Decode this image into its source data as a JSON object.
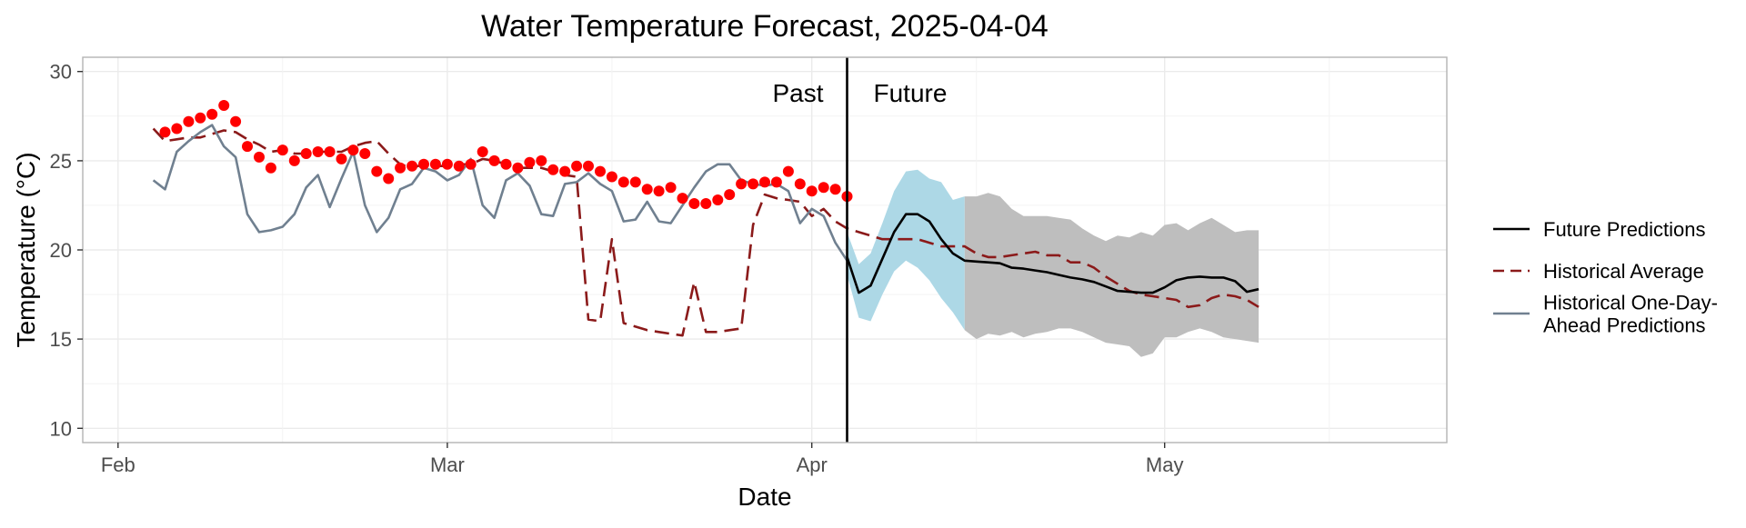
{
  "chart_data": {
    "type": "line",
    "title": "Water Temperature Forecast, 2025-04-04",
    "xlabel": "Date",
    "ylabel": "Temperature (°C)",
    "xlim": [
      "2025-01-29",
      "2025-05-25"
    ],
    "ylim": [
      9.2,
      30.8
    ],
    "yticks": [
      10,
      15,
      20,
      25,
      30
    ],
    "xticks": [
      {
        "date": "2025-02-01",
        "label": "Feb"
      },
      {
        "date": "2025-03-01",
        "label": "Mar"
      },
      {
        "date": "2025-04-01",
        "label": "Apr"
      },
      {
        "date": "2025-05-01",
        "label": "May"
      }
    ],
    "x_minor_ticks": [
      "2025-02-15",
      "2025-03-15",
      "2025-04-15",
      "2025-05-15"
    ],
    "grid": true,
    "legend_position": "right",
    "cutoff_date": "2025-04-04",
    "annotations": {
      "past": "Past",
      "future": "Future"
    },
    "legend": [
      {
        "key": "future",
        "label": [
          "Future Predictions"
        ],
        "style": "solid",
        "color": "#000000"
      },
      {
        "key": "historical_average",
        "label": [
          "Historical Average"
        ],
        "style": "dashed",
        "color": "#8b1a1a"
      },
      {
        "key": "one_day_ahead",
        "label": [
          "Historical One-Day-",
          "Ahead Predictions"
        ],
        "style": "solid",
        "color": "#708090"
      }
    ],
    "colors": {
      "observed": "#ff0000",
      "future_line": "#000000",
      "historical_average": "#8b1a1a",
      "one_day_ahead": "#708090",
      "ribbon_near": "#add8e6",
      "ribbon_far": "#bebebe",
      "cutoff_line": "#000000"
    },
    "series": [
      {
        "key": "observed",
        "type": "scatter",
        "x": [
          "2025-02-05",
          "2025-02-06",
          "2025-02-07",
          "2025-02-08",
          "2025-02-09",
          "2025-02-10",
          "2025-02-11",
          "2025-02-12",
          "2025-02-13",
          "2025-02-14",
          "2025-02-15",
          "2025-02-16",
          "2025-02-17",
          "2025-02-18",
          "2025-02-19",
          "2025-02-20",
          "2025-02-21",
          "2025-02-22",
          "2025-02-23",
          "2025-02-24",
          "2025-02-25",
          "2025-02-26",
          "2025-02-27",
          "2025-02-28",
          "2025-03-01",
          "2025-03-02",
          "2025-03-03",
          "2025-03-04",
          "2025-03-05",
          "2025-03-06",
          "2025-03-07",
          "2025-03-08",
          "2025-03-09",
          "2025-03-10",
          "2025-03-11",
          "2025-03-12",
          "2025-03-13",
          "2025-03-14",
          "2025-03-15",
          "2025-03-16",
          "2025-03-17",
          "2025-03-18",
          "2025-03-19",
          "2025-03-20",
          "2025-03-21",
          "2025-03-22",
          "2025-03-23",
          "2025-03-24",
          "2025-03-25",
          "2025-03-26",
          "2025-03-27",
          "2025-03-28",
          "2025-03-29",
          "2025-03-30",
          "2025-03-31",
          "2025-04-01",
          "2025-04-02",
          "2025-04-03",
          "2025-04-04"
        ],
        "y": [
          26.6,
          26.8,
          27.2,
          27.4,
          27.6,
          28.1,
          27.2,
          25.8,
          25.2,
          24.6,
          25.6,
          25.0,
          25.4,
          25.5,
          25.5,
          25.1,
          25.6,
          25.4,
          24.4,
          24.0,
          24.6,
          24.7,
          24.8,
          24.8,
          24.8,
          24.7,
          24.8,
          25.5,
          25.0,
          24.8,
          24.6,
          24.9,
          25.0,
          24.5,
          24.4,
          24.7,
          24.7,
          24.4,
          24.1,
          23.8,
          23.8,
          23.4,
          23.3,
          23.5,
          22.9,
          22.6,
          22.6,
          22.8,
          23.1,
          23.7,
          23.7,
          23.8,
          23.8,
          24.4,
          23.7,
          23.3,
          23.5,
          23.4,
          23.0
        ]
      },
      {
        "key": "future",
        "name": "Future Predictions",
        "type": "line",
        "x": [
          "2025-04-04",
          "2025-04-05",
          "2025-04-06",
          "2025-04-07",
          "2025-04-08",
          "2025-04-09",
          "2025-04-10",
          "2025-04-11",
          "2025-04-12",
          "2025-04-13",
          "2025-04-14",
          "2025-04-15",
          "2025-04-16",
          "2025-04-17",
          "2025-04-18",
          "2025-04-19",
          "2025-04-20",
          "2025-04-21",
          "2025-04-22",
          "2025-04-23",
          "2025-04-24",
          "2025-04-25",
          "2025-04-26",
          "2025-04-27",
          "2025-04-28",
          "2025-04-29",
          "2025-04-30",
          "2025-05-01",
          "2025-05-02",
          "2025-05-03",
          "2025-05-04",
          "2025-05-05",
          "2025-05-06",
          "2025-05-07",
          "2025-05-08",
          "2025-05-09"
        ],
        "y": [
          19.6,
          17.6,
          18.0,
          19.5,
          21.0,
          22.0,
          22.0,
          21.6,
          20.6,
          19.8,
          19.4,
          19.35,
          19.3,
          19.25,
          19.0,
          18.95,
          18.85,
          18.75,
          18.6,
          18.45,
          18.35,
          18.2,
          17.95,
          17.7,
          17.65,
          17.6,
          17.6,
          17.9,
          18.3,
          18.45,
          18.5,
          18.45,
          18.45,
          18.25,
          17.65,
          17.8
        ]
      },
      {
        "key": "historical_average",
        "name": "Historical Average",
        "type": "line",
        "style": "dashed",
        "x": [
          "2025-02-04",
          "2025-02-05",
          "2025-02-06",
          "2025-02-07",
          "2025-02-08",
          "2025-02-09",
          "2025-02-10",
          "2025-02-11",
          "2025-02-12",
          "2025-02-13",
          "2025-02-14",
          "2025-02-15",
          "2025-02-16",
          "2025-02-17",
          "2025-02-18",
          "2025-02-19",
          "2025-02-20",
          "2025-02-21",
          "2025-02-22",
          "2025-02-23",
          "2025-02-24",
          "2025-02-25",
          "2025-02-26",
          "2025-02-27",
          "2025-02-28",
          "2025-03-01",
          "2025-03-02",
          "2025-03-03",
          "2025-03-04",
          "2025-03-05",
          "2025-03-06",
          "2025-03-07",
          "2025-03-08",
          "2025-03-09",
          "2025-03-10",
          "2025-03-11",
          "2025-03-12",
          "2025-03-13",
          "2025-03-14",
          "2025-03-15",
          "2025-03-16",
          "2025-03-17",
          "2025-03-18",
          "2025-03-19",
          "2025-03-20",
          "2025-03-21",
          "2025-03-22",
          "2025-03-23",
          "2025-03-24",
          "2025-03-25",
          "2025-03-26",
          "2025-03-27",
          "2025-03-28",
          "2025-03-29",
          "2025-03-30",
          "2025-03-31",
          "2025-04-01",
          "2025-04-02",
          "2025-04-03",
          "2025-04-04",
          "2025-04-05",
          "2025-04-06",
          "2025-04-07",
          "2025-04-08",
          "2025-04-09",
          "2025-04-10",
          "2025-04-11",
          "2025-04-12",
          "2025-04-13",
          "2025-04-14",
          "2025-04-15",
          "2025-04-16",
          "2025-04-17",
          "2025-04-18",
          "2025-04-19",
          "2025-04-20",
          "2025-04-21",
          "2025-04-22",
          "2025-04-23",
          "2025-04-24",
          "2025-04-25",
          "2025-04-26",
          "2025-04-27",
          "2025-04-28",
          "2025-04-29",
          "2025-04-30",
          "2025-05-01",
          "2025-05-02",
          "2025-05-03",
          "2025-05-04",
          "2025-05-05",
          "2025-05-06",
          "2025-05-07",
          "2025-05-08",
          "2025-05-09"
        ],
        "y": [
          26.8,
          26.1,
          26.2,
          26.3,
          26.3,
          26.5,
          26.7,
          26.6,
          26.2,
          25.9,
          25.5,
          25.6,
          25.4,
          25.4,
          25.5,
          25.5,
          25.5,
          25.8,
          26.0,
          26.1,
          25.4,
          24.8,
          24.6,
          24.8,
          24.7,
          24.7,
          24.8,
          24.8,
          25.1,
          25.0,
          24.8,
          24.6,
          24.6,
          24.6,
          24.4,
          24.2,
          24.1,
          16.1,
          16.0,
          20.6,
          15.9,
          15.7,
          15.5,
          15.4,
          15.3,
          15.2,
          18.2,
          15.4,
          15.4,
          15.5,
          15.6,
          21.4,
          23.1,
          22.9,
          22.8,
          22.7,
          21.9,
          22.3,
          21.6,
          21.2,
          21.0,
          20.8,
          20.6,
          20.6,
          20.6,
          20.6,
          20.4,
          20.2,
          20.2,
          20.2,
          19.8,
          19.6,
          19.6,
          19.7,
          19.8,
          19.9,
          19.7,
          19.7,
          19.3,
          19.3,
          19.0,
          18.5,
          18.1,
          17.7,
          17.5,
          17.4,
          17.3,
          17.2,
          16.8,
          16.9,
          17.3,
          17.5,
          17.4,
          17.2,
          16.8
        ]
      },
      {
        "key": "one_day_ahead",
        "name": "Historical One-Day-Ahead Predictions",
        "type": "line",
        "x": [
          "2025-02-04",
          "2025-02-05",
          "2025-02-06",
          "2025-02-07",
          "2025-02-08",
          "2025-02-09",
          "2025-02-10",
          "2025-02-11",
          "2025-02-12",
          "2025-02-13",
          "2025-02-14",
          "2025-02-15",
          "2025-02-16",
          "2025-02-17",
          "2025-02-18",
          "2025-02-19",
          "2025-02-20",
          "2025-02-21",
          "2025-02-22",
          "2025-02-23",
          "2025-02-24",
          "2025-02-25",
          "2025-02-26",
          "2025-02-27",
          "2025-02-28",
          "2025-03-01",
          "2025-03-02",
          "2025-03-03",
          "2025-03-04",
          "2025-03-05",
          "2025-03-06",
          "2025-03-07",
          "2025-03-08",
          "2025-03-09",
          "2025-03-10",
          "2025-03-11",
          "2025-03-12",
          "2025-03-13",
          "2025-03-14",
          "2025-03-15",
          "2025-03-16",
          "2025-03-17",
          "2025-03-18",
          "2025-03-19",
          "2025-03-20",
          "2025-03-21",
          "2025-03-22",
          "2025-03-23",
          "2025-03-24",
          "2025-03-25",
          "2025-03-26",
          "2025-03-27",
          "2025-03-28",
          "2025-03-29",
          "2025-03-30",
          "2025-03-31",
          "2025-04-01",
          "2025-04-02",
          "2025-04-03",
          "2025-04-04"
        ],
        "y": [
          23.9,
          23.4,
          25.5,
          26.1,
          26.6,
          27.0,
          25.8,
          25.2,
          22.0,
          21.0,
          21.1,
          21.3,
          22.0,
          23.5,
          24.2,
          22.4,
          24.0,
          25.5,
          22.5,
          21.0,
          21.8,
          23.4,
          23.7,
          24.6,
          24.4,
          23.9,
          24.2,
          25.1,
          22.5,
          21.8,
          23.9,
          24.3,
          23.6,
          22.0,
          21.9,
          23.7,
          23.8,
          24.3,
          23.7,
          23.3,
          21.6,
          21.7,
          22.7,
          21.6,
          21.5,
          22.5,
          23.5,
          24.4,
          24.8,
          24.8,
          23.9,
          23.7,
          23.6,
          23.7,
          23.3,
          21.5,
          22.3,
          21.9,
          20.4,
          19.4
        ]
      },
      {
        "key": "ribbon_near",
        "type": "area",
        "x": [
          "2025-04-04",
          "2025-04-05",
          "2025-04-06",
          "2025-04-07",
          "2025-04-08",
          "2025-04-09",
          "2025-04-10",
          "2025-04-11",
          "2025-04-12",
          "2025-04-13",
          "2025-04-14"
        ],
        "upper": [
          21.0,
          19.2,
          19.8,
          21.5,
          23.3,
          24.4,
          24.5,
          24.0,
          23.8,
          22.8,
          23.0
        ],
        "lower": [
          18.6,
          16.2,
          16.0,
          17.5,
          18.8,
          19.4,
          19.0,
          18.3,
          17.3,
          16.5,
          15.5
        ]
      },
      {
        "key": "ribbon_far",
        "type": "area",
        "x": [
          "2025-04-14",
          "2025-04-15",
          "2025-04-16",
          "2025-04-17",
          "2025-04-18",
          "2025-04-19",
          "2025-04-20",
          "2025-04-21",
          "2025-04-22",
          "2025-04-23",
          "2025-04-24",
          "2025-04-25",
          "2025-04-26",
          "2025-04-27",
          "2025-04-28",
          "2025-04-29",
          "2025-04-30",
          "2025-05-01",
          "2025-05-02",
          "2025-05-03",
          "2025-05-04",
          "2025-05-05",
          "2025-05-06",
          "2025-05-07",
          "2025-05-08",
          "2025-05-09"
        ],
        "upper": [
          23.0,
          23.0,
          23.2,
          23.0,
          22.3,
          21.9,
          21.9,
          21.9,
          21.8,
          21.7,
          21.2,
          20.8,
          20.5,
          20.8,
          20.7,
          21.0,
          20.8,
          21.4,
          21.5,
          21.1,
          21.5,
          21.8,
          21.4,
          21.0,
          21.1,
          21.1
        ],
        "lower": [
          15.5,
          15.0,
          15.3,
          15.2,
          15.4,
          15.1,
          15.3,
          15.4,
          15.6,
          15.6,
          15.4,
          15.1,
          14.8,
          14.7,
          14.6,
          14.0,
          14.2,
          15.1,
          15.1,
          15.4,
          15.6,
          15.4,
          15.1,
          15.0,
          14.9,
          14.8
        ]
      }
    ]
  }
}
